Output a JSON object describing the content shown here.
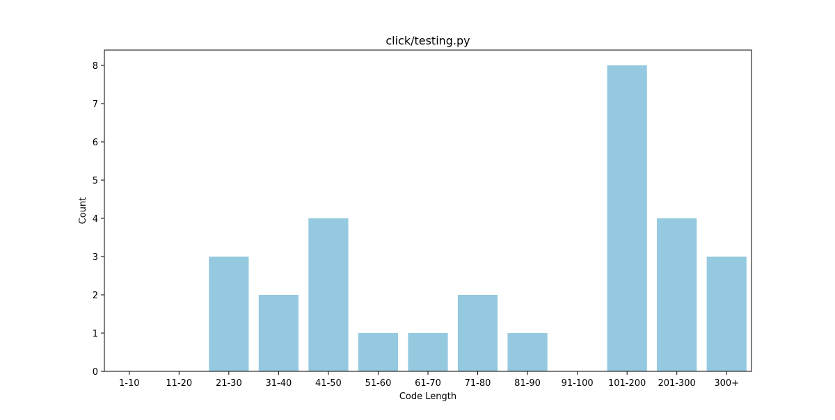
{
  "chart_data": {
    "type": "bar",
    "title": "click/testing.py",
    "xlabel": "Code Length",
    "ylabel": "Count",
    "categories": [
      "1-10",
      "11-20",
      "21-30",
      "31-40",
      "41-50",
      "51-60",
      "61-70",
      "71-80",
      "81-90",
      "91-100",
      "101-200",
      "201-300",
      "300+"
    ],
    "values": [
      0,
      0,
      3,
      2,
      4,
      1,
      1,
      2,
      1,
      0,
      8,
      4,
      3
    ],
    "ylim": [
      0,
      8.4
    ],
    "yticks": [
      0,
      1,
      2,
      3,
      4,
      5,
      6,
      7,
      8
    ],
    "grid": false,
    "legend": "none",
    "colors": {
      "bar": "#95c9df",
      "axis": "#000000",
      "background": "#ffffff"
    }
  }
}
